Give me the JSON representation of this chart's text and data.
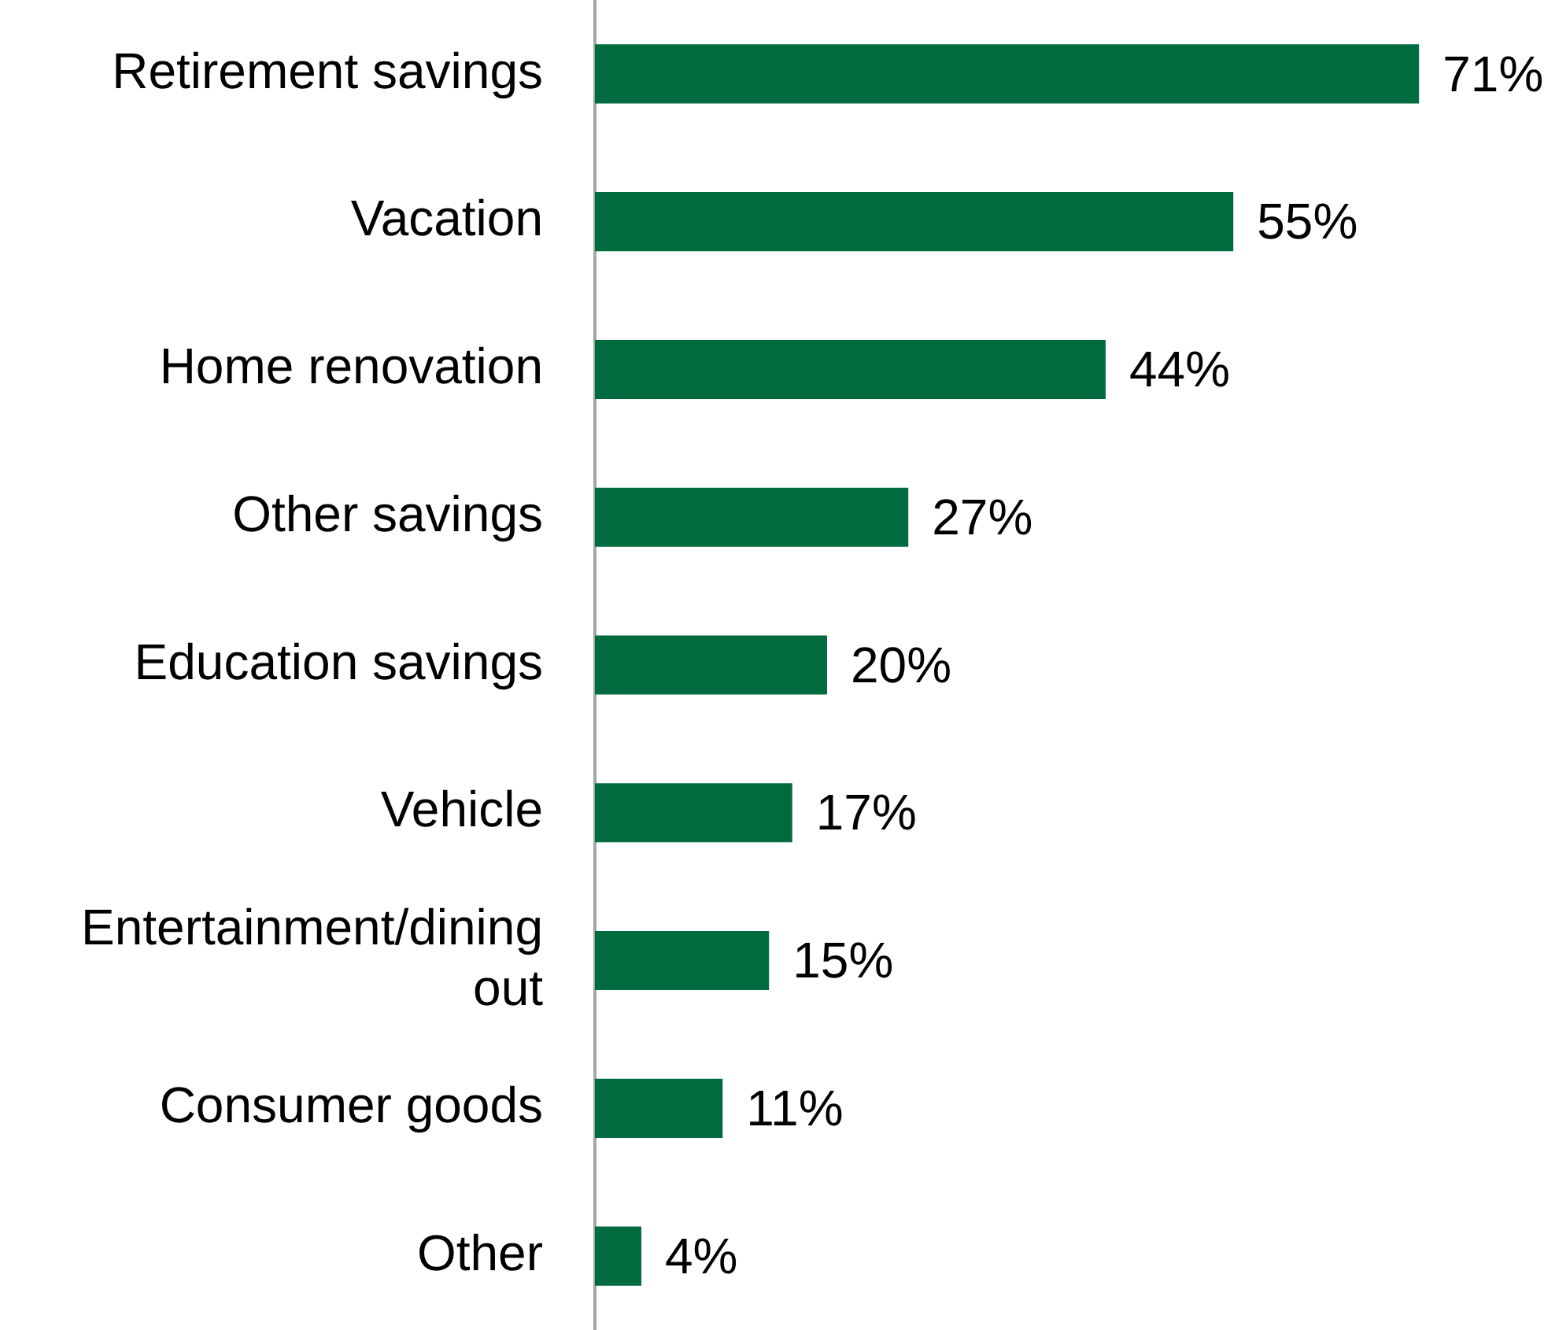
{
  "chart_data": {
    "type": "bar",
    "orientation": "horizontal",
    "categories": [
      "Retirement savings",
      "Vacation",
      "Home renovation",
      "Other savings",
      "Education savings",
      "Vehicle",
      "Entertainment/dining out",
      "Consumer goods",
      "Other"
    ],
    "values": [
      71,
      55,
      44,
      27,
      20,
      17,
      15,
      11,
      4
    ],
    "value_labels": [
      "71%",
      "55%",
      "44%",
      "27%",
      "20%",
      "17%",
      "15%",
      "11%",
      "4%"
    ],
    "color": "#006b3f"
  }
}
